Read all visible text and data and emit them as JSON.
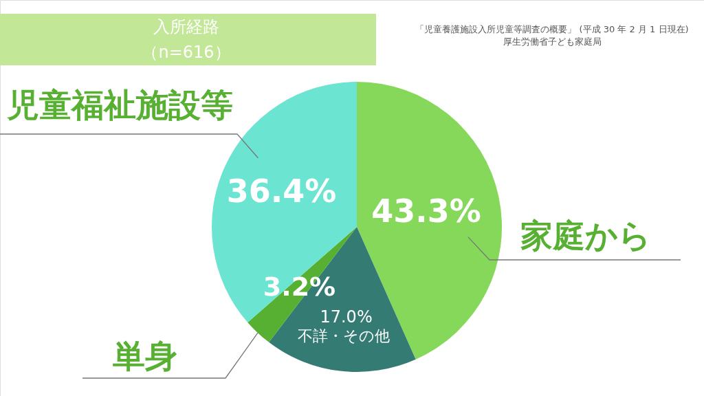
{
  "chart_data": {
    "type": "pie",
    "title": "入所経路",
    "subtitle": "（n=616）",
    "categories": [
      "家庭から",
      "不詳・その他",
      "単身",
      "児童福祉施設等"
    ],
    "values": [
      43.3,
      17.0,
      3.2,
      36.4
    ],
    "colors": [
      "#86d85a",
      "#347b74",
      "#58b033",
      "#6ce4d2"
    ],
    "value_labels": [
      "43.3%",
      "17.0%",
      "3.2%",
      "36.4%"
    ],
    "annotations": [
      "「児童養護施設入所児童等調査の概要」 (平成 30 年 2 月 1 日現在)",
      "厚生労働省子ども家庭局"
    ]
  }
}
